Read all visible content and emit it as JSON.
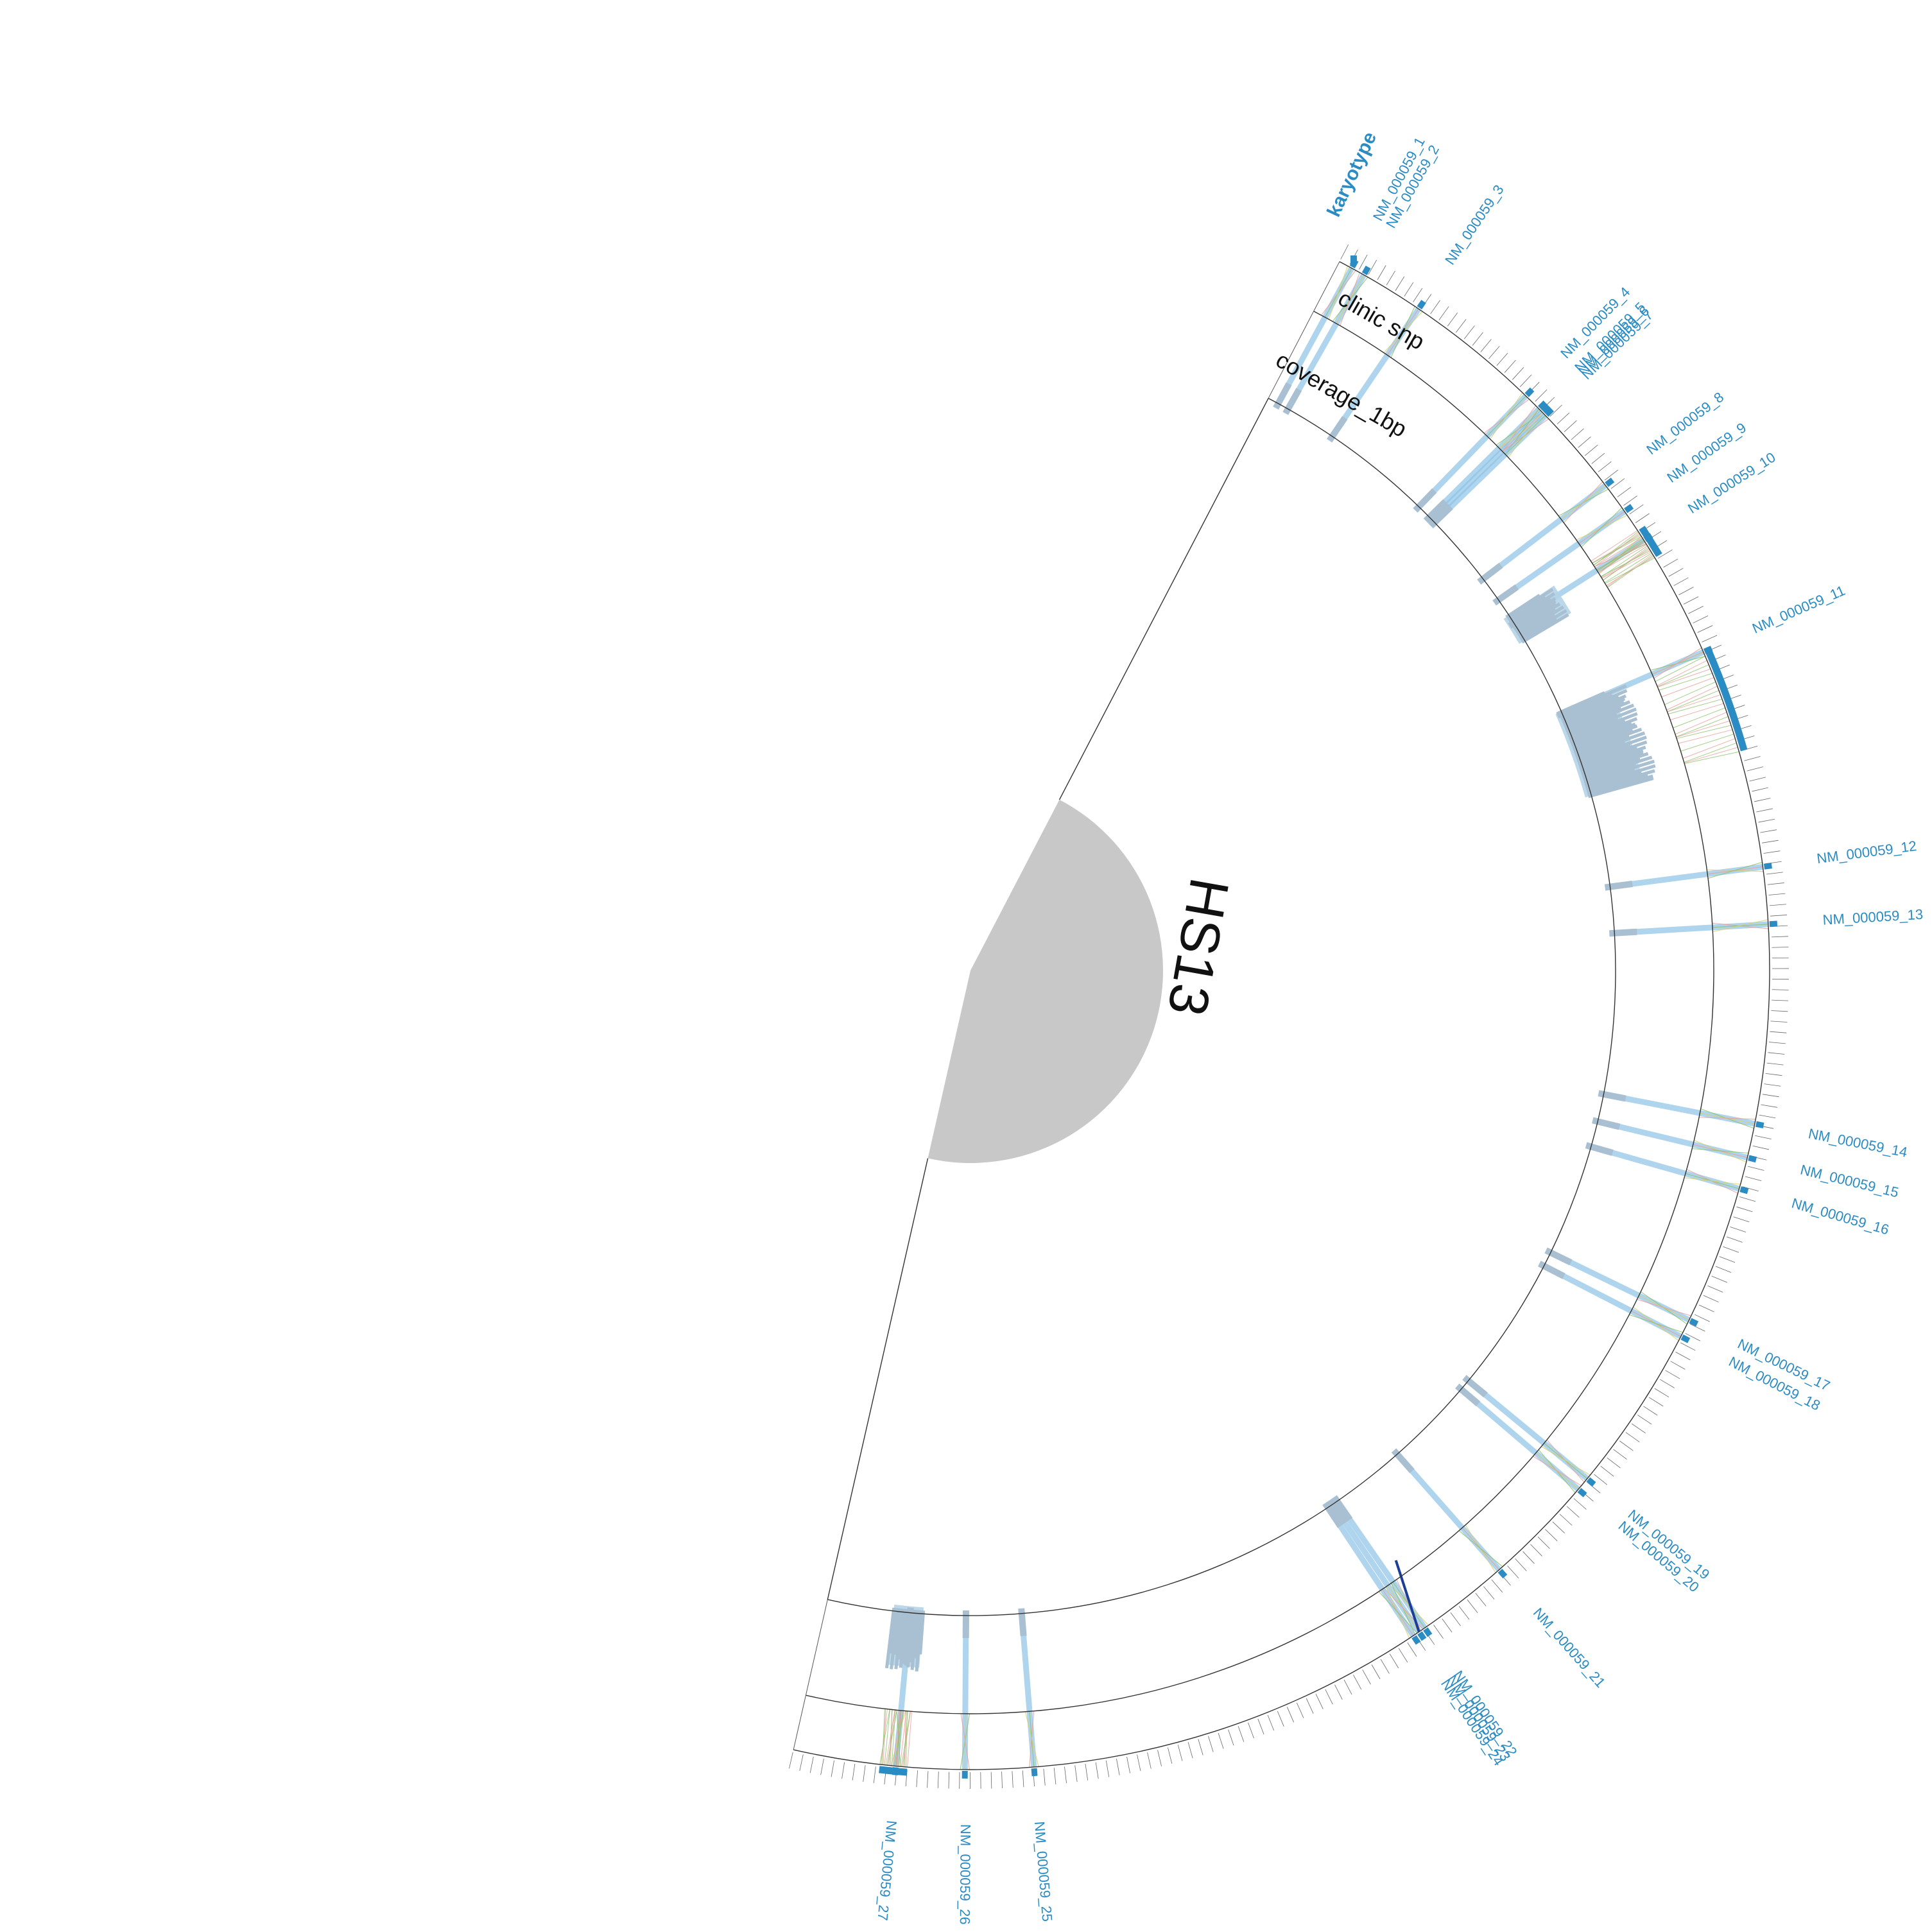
{
  "chromosome": {
    "name": "HS13",
    "color": "#c8c8c8"
  },
  "tracks": {
    "karyotype": {
      "label": "karyotype",
      "color": "#2b8cc4"
    },
    "clinic_snp": {
      "label": "clinic snp"
    },
    "coverage": {
      "label": "coverage_1bp",
      "color": "#a9c0d3",
      "shade": "#b3d4e8"
    }
  },
  "colors": {
    "accent": "#2b8cc4",
    "link_blue": "#8ec3e6",
    "snp_red": "#e8a09a",
    "snp_green": "#8cc36b",
    "snp_yellow": "#d8d06a",
    "dark_link": "#1c3f95"
  },
  "exons": [
    {
      "name": "NM_000059_1",
      "pos": 0.006
    },
    {
      "name": "NM_000059_2",
      "pos": 0.012
    },
    {
      "name": "NM_000059_3",
      "pos": 0.04
    },
    {
      "name": "NM_000059_4",
      "pos": 0.1
    },
    {
      "name": "NM_000059_5",
      "pos": 0.108
    },
    {
      "name": "NM_000059_6",
      "pos": 0.11
    },
    {
      "name": "NM_000059_7",
      "pos": 0.112
    },
    {
      "name": "NM_000059_8",
      "pos": 0.152
    },
    {
      "name": "NM_000059_9",
      "pos": 0.166
    },
    {
      "name": "NM_000059_10",
      "pos": 0.181
    },
    {
      "name": "NM_000059_11",
      "pos": 0.236
    },
    {
      "name": "NM_000059_12",
      "pos": 0.333
    },
    {
      "name": "NM_000059_13",
      "pos": 0.358
    },
    {
      "name": "NM_000059_14",
      "pos": 0.445
    },
    {
      "name": "NM_000059_15",
      "pos": 0.46
    },
    {
      "name": "NM_000059_16",
      "pos": 0.474
    },
    {
      "name": "NM_000059_17",
      "pos": 0.535
    },
    {
      "name": "NM_000059_18",
      "pos": 0.543
    },
    {
      "name": "NM_000059_19",
      "pos": 0.617
    },
    {
      "name": "NM_000059_20",
      "pos": 0.623
    },
    {
      "name": "NM_000059_21",
      "pos": 0.672
    },
    {
      "name": "NM_000059_22",
      "pos": 0.713
    },
    {
      "name": "NM_000059_23",
      "pos": 0.716
    },
    {
      "name": "NM_000059_24",
      "pos": 0.719
    },
    {
      "name": "NM_000059_25",
      "pos": 0.895
    },
    {
      "name": "NM_000059_26",
      "pos": 0.925
    },
    {
      "name": "NM_000059_27",
      "pos": 0.955
    }
  ],
  "wide_exons": [
    {
      "name": "NM_000059_11",
      "start": 0.236,
      "end": 0.282
    },
    {
      "name": "NM_000059_10",
      "start": 0.176,
      "end": 0.19
    },
    {
      "name": "NM_000059_27",
      "start": 0.95,
      "end": 0.962
    }
  ],
  "coverage_regions": [
    {
      "start": 0.176,
      "end": 0.192,
      "level": 0.45
    },
    {
      "start": 0.235,
      "end": 0.283,
      "level": 0.72
    },
    {
      "start": 0.948,
      "end": 0.964,
      "level": 0.55
    }
  ],
  "dark_link_pos": 0.716
}
